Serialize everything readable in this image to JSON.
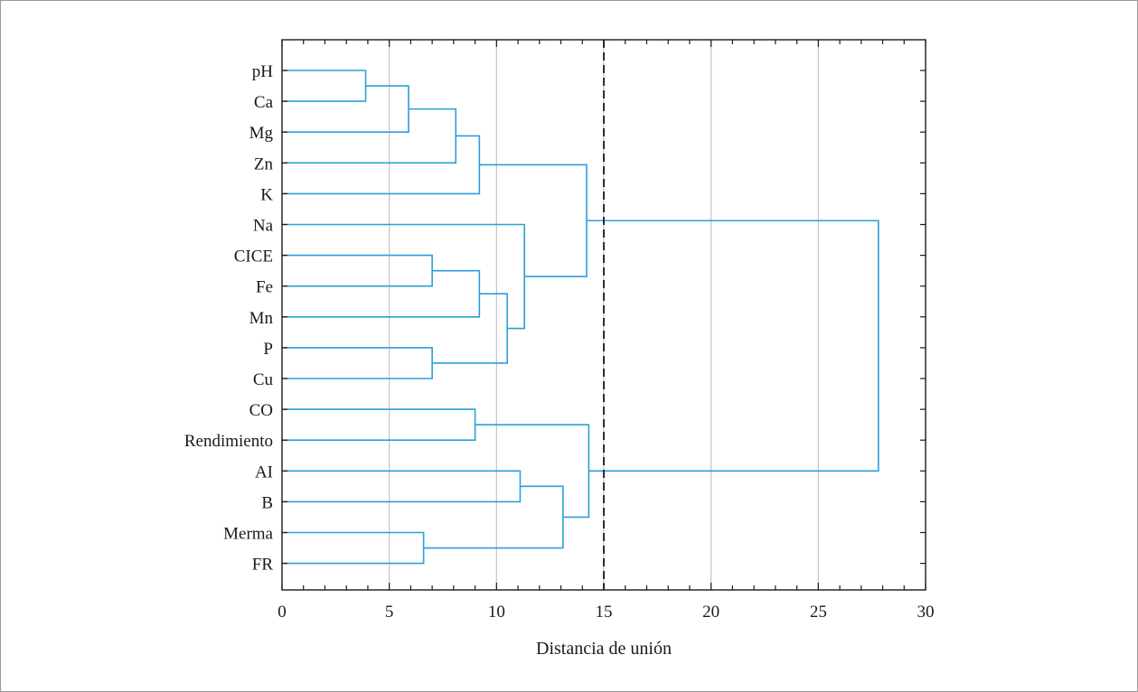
{
  "chart_data": {
    "type": "dendrogram",
    "xlabel": "Distancia de unión",
    "xlim": [
      0,
      30
    ],
    "x_ticks": [
      0,
      5,
      10,
      15,
      20,
      25,
      30
    ],
    "grid": "vertical",
    "cut_line": 15,
    "leaves": [
      "pH",
      "Ca",
      "Mg",
      "Zn",
      "K",
      "Na",
      "CICE",
      "Fe",
      "Mn",
      "P",
      "Cu",
      "CO",
      "Rendimiento",
      "AI",
      "B",
      "Merma",
      "FR"
    ],
    "merges": [
      {
        "id": "m1",
        "left": "pH",
        "right": "Ca",
        "distance": 3.9
      },
      {
        "id": "m2",
        "left": "m1",
        "right": "Mg",
        "distance": 5.9
      },
      {
        "id": "m3",
        "left": "m2",
        "right": "Zn",
        "distance": 8.1
      },
      {
        "id": "m4",
        "left": "m3",
        "right": "K",
        "distance": 9.2
      },
      {
        "id": "m5",
        "left": "CICE",
        "right": "Fe",
        "distance": 7.0
      },
      {
        "id": "m6",
        "left": "m5",
        "right": "Mn",
        "distance": 9.2
      },
      {
        "id": "m7",
        "left": "P",
        "right": "Cu",
        "distance": 7.0
      },
      {
        "id": "m8",
        "left": "m6",
        "right": "m7",
        "distance": 10.5
      },
      {
        "id": "m9",
        "left": "Na",
        "right": "m8",
        "distance": 11.3
      },
      {
        "id": "m10",
        "left": "m4",
        "right": "m9",
        "distance": 14.2
      },
      {
        "id": "m11",
        "left": "CO",
        "right": "Rendimiento",
        "distance": 9.0
      },
      {
        "id": "m12",
        "left": "AI",
        "right": "B",
        "distance": 11.1
      },
      {
        "id": "m13",
        "left": "Merma",
        "right": "FR",
        "distance": 6.6
      },
      {
        "id": "m14",
        "left": "m12",
        "right": "m13",
        "distance": 13.1
      },
      {
        "id": "m15",
        "left": "m11",
        "right": "m14",
        "distance": 14.3
      },
      {
        "id": "m16",
        "left": "m10",
        "right": "m15",
        "distance": 27.8
      }
    ],
    "colors": {
      "branches": "#2b9fd9",
      "grid": "#c8c8c8",
      "axis": "#1a1a1a",
      "cut_line": "#1a1a1a"
    }
  }
}
